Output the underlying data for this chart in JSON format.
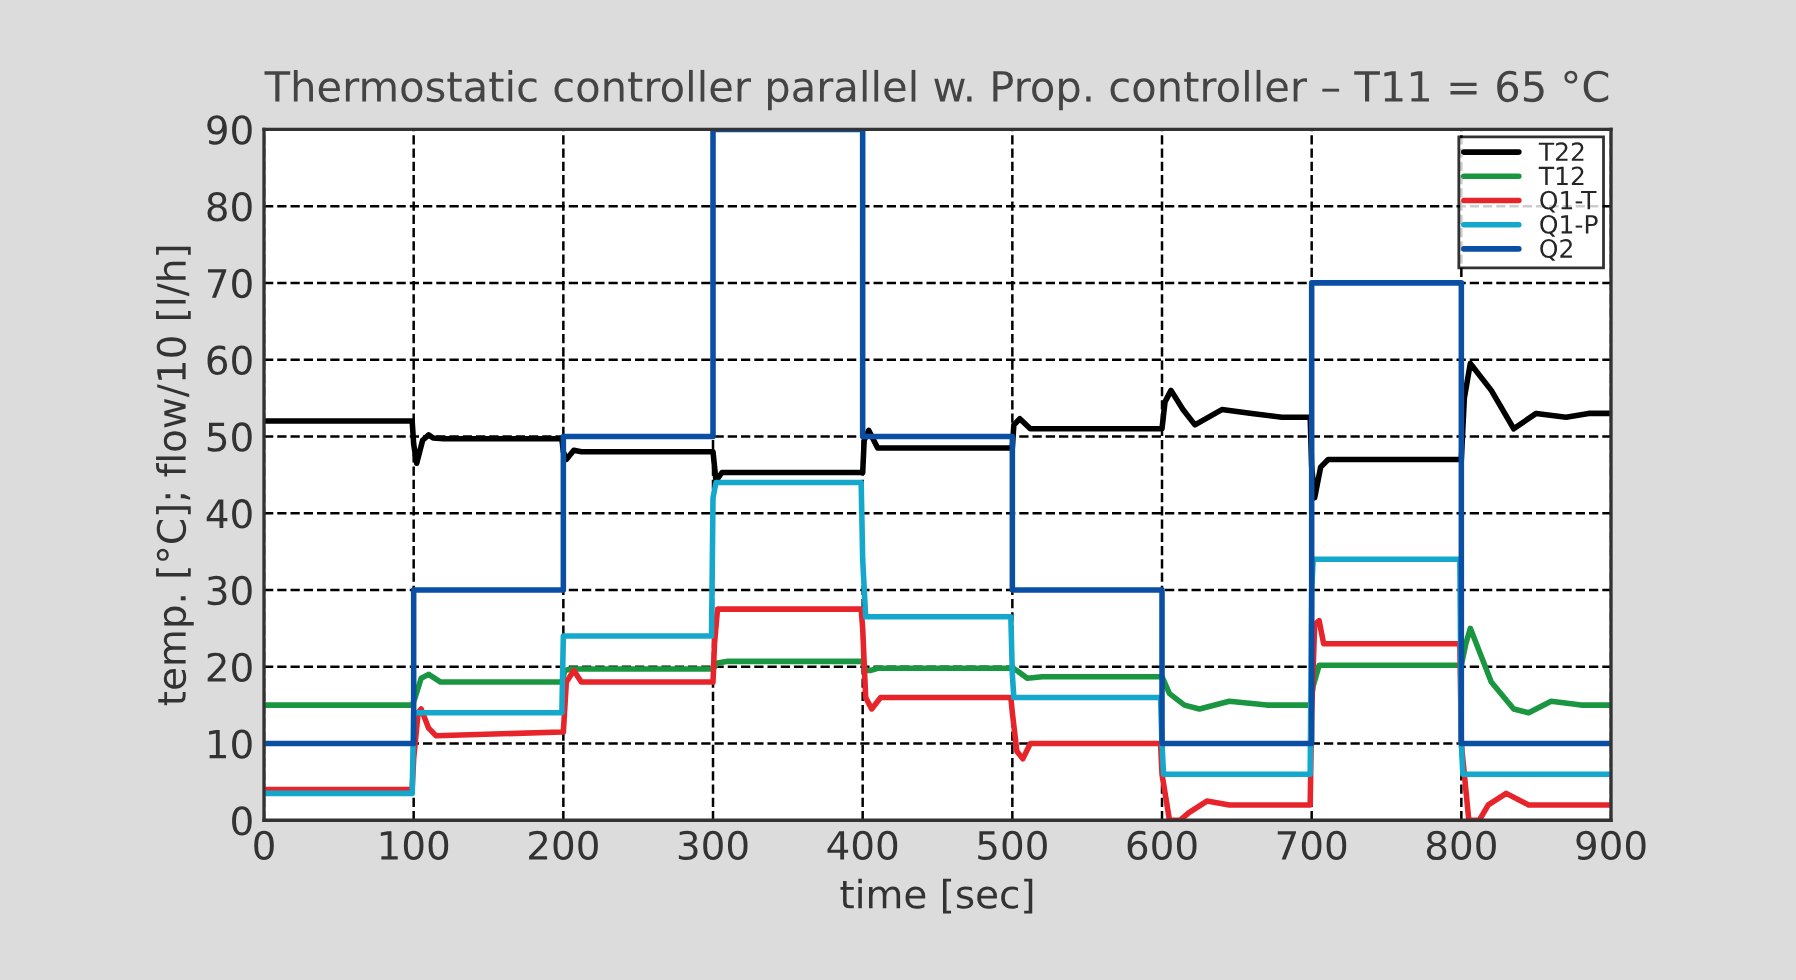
{
  "chart_data": {
    "type": "line",
    "title": "Thermostatic controller parallel w. Prop. controller – T11 = 65 °C",
    "xlabel": "time [sec]",
    "ylabel": "temp. [°C]; flow/10 [l/h]",
    "xlim": [
      0,
      900
    ],
    "ylim": [
      0,
      90
    ],
    "xticks": [
      0,
      100,
      200,
      300,
      400,
      500,
      600,
      700,
      800,
      900
    ],
    "yticks": [
      0,
      10,
      20,
      30,
      40,
      50,
      60,
      70,
      80,
      90
    ],
    "grid": true,
    "line_style": "solid",
    "legend": "top right",
    "series": [
      {
        "name": "T22",
        "color": "#000000",
        "x": [
          0,
          99,
          100,
          102,
          106,
          110,
          113,
          120,
          199,
          200,
          202,
          207,
          212,
          300,
          302,
          306,
          312,
          400,
          401,
          404,
          410,
          500,
          501,
          505,
          512,
          600,
          602,
          606,
          614,
          622,
          640,
          660,
          680,
          699,
          700,
          702,
          706,
          711,
          800,
          802,
          806,
          820,
          835,
          850,
          870,
          885,
          900
        ],
        "values": [
          52,
          52,
          49,
          46.5,
          49.5,
          50.2,
          49.8,
          49.7,
          49.7,
          48,
          47,
          48.2,
          48,
          48,
          44.2,
          45.3,
          45.3,
          45.3,
          49.5,
          50.8,
          48.5,
          48.5,
          51.5,
          52.3,
          51,
          51,
          54.5,
          56,
          53.5,
          51.5,
          53.5,
          53,
          52.5,
          52.5,
          46,
          42,
          46,
          47,
          47,
          55,
          59.5,
          56,
          51,
          53,
          52.5,
          53,
          53
        ]
      },
      {
        "name": "T12",
        "color": "#1a9641",
        "x": [
          0,
          99,
          101,
          105,
          110,
          118,
          199,
          201,
          205,
          300,
          303,
          310,
          400,
          402,
          405,
          410,
          500,
          503,
          510,
          520,
          600,
          605,
          615,
          625,
          645,
          670,
          699,
          701,
          705,
          800,
          803,
          806,
          820,
          835,
          845,
          860,
          880,
          900
        ],
        "values": [
          15,
          15,
          16,
          18.5,
          19,
          18,
          18,
          19.5,
          19.7,
          19.7,
          20.5,
          20.7,
          20.7,
          19.5,
          19.5,
          19.8,
          19.8,
          19.5,
          18.5,
          18.7,
          18.7,
          16.5,
          15,
          14.5,
          15.5,
          15,
          15,
          17.5,
          20.2,
          20.2,
          23,
          25,
          18,
          14.5,
          14,
          15.5,
          15,
          15
        ]
      },
      {
        "name": "Q1-T",
        "color": "#e8242b",
        "x": [
          0,
          99,
          100,
          103,
          105,
          110,
          115,
          199,
          200,
          202,
          207,
          212,
          300,
          301,
          303,
          399,
          400,
          402,
          406,
          412,
          499,
          500,
          503,
          507,
          512,
          599,
          600,
          605,
          612,
          618,
          630,
          645,
          660,
          699,
          700,
          702,
          705,
          708,
          799,
          800,
          805,
          812,
          818,
          830,
          845,
          865,
          900
        ],
        "values": [
          4,
          4,
          8,
          14,
          14.5,
          12,
          11,
          11.5,
          11.5,
          18,
          19.5,
          18,
          18,
          23,
          27.5,
          27.5,
          25,
          16,
          14.5,
          16,
          16,
          14,
          9,
          8,
          10,
          10,
          6,
          0,
          0,
          1,
          2.5,
          2,
          2,
          2,
          14,
          25.5,
          26,
          23,
          23,
          10,
          0,
          0,
          2,
          3.5,
          2,
          2,
          2
        ]
      },
      {
        "name": "Q1-P",
        "color": "#14a8cc",
        "x": [
          0,
          99,
          100,
          199,
          200,
          299,
          300,
          302,
          399,
          400,
          402,
          499,
          500,
          501,
          599,
          600,
          601,
          699,
          700,
          701,
          799,
          800,
          801,
          900
        ],
        "values": [
          3.5,
          3.5,
          14,
          14,
          24,
          24,
          42,
          44,
          44,
          34,
          26.5,
          26.5,
          19,
          16,
          16,
          10,
          6,
          6,
          30,
          34,
          34,
          10,
          6,
          6
        ]
      },
      {
        "name": "Q2",
        "color": "#0b4fa5",
        "x": [
          0,
          100,
          100,
          200,
          200,
          300,
          300,
          400,
          400,
          500,
          500,
          600,
          600,
          700,
          700,
          800,
          800,
          900
        ],
        "values": [
          10,
          10,
          30,
          30,
          50,
          50,
          90,
          90,
          50,
          50,
          30,
          30,
          10,
          10,
          70,
          70,
          10,
          10
        ]
      }
    ]
  }
}
